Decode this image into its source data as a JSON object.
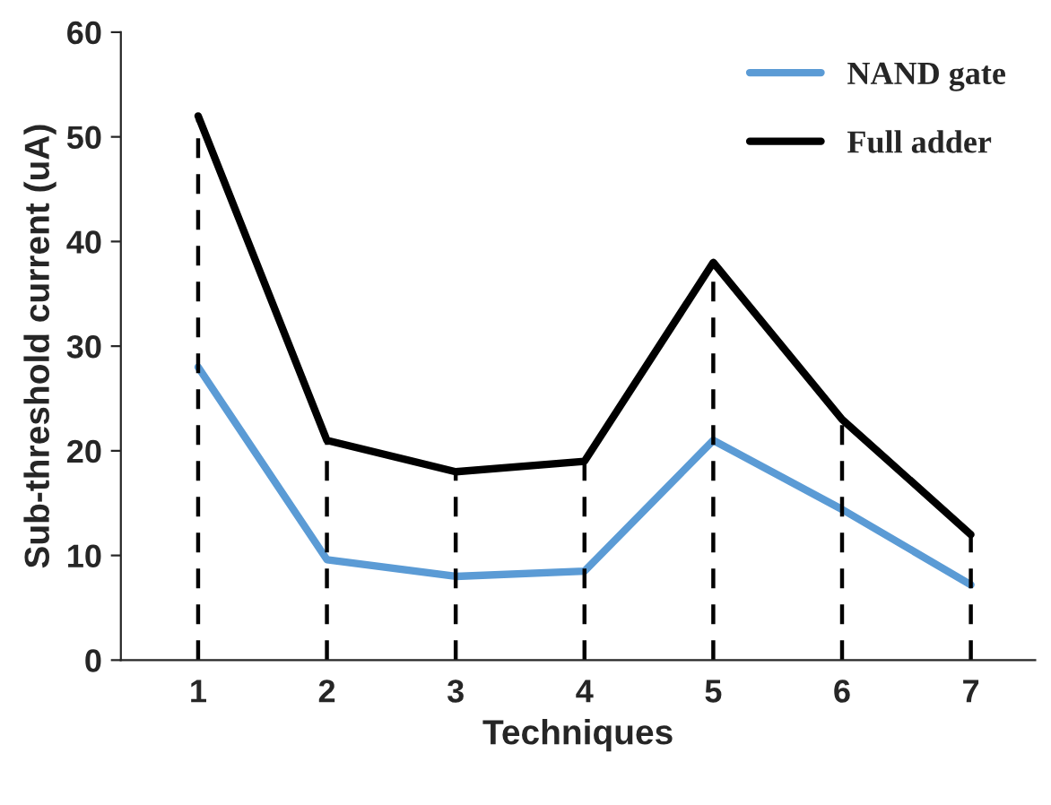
{
  "chart_data": {
    "type": "line",
    "xlabel": "Techniques",
    "ylabel": "Sub-threshold current (uA)",
    "categories": [
      "1",
      "2",
      "3",
      "4",
      "5",
      "6",
      "7"
    ],
    "series": [
      {
        "name": "NAND gate",
        "color": "#5b9bd5",
        "values": [
          28,
          9.6,
          8,
          8.5,
          21,
          14.4,
          7.2
        ]
      },
      {
        "name": "Full adder",
        "color": "#000000",
        "values": [
          52,
          21,
          18,
          19,
          38,
          23,
          12
        ]
      }
    ],
    "ref_lines": [
      {
        "axis": "x",
        "value": "1",
        "color": "#000000",
        "line_style": "dashed"
      },
      {
        "axis": "x",
        "value": "2",
        "color": "#000000",
        "line_style": "dashed"
      },
      {
        "axis": "x",
        "value": "3",
        "color": "#000000",
        "line_style": "dashed"
      },
      {
        "axis": "x",
        "value": "4",
        "color": "#000000",
        "line_style": "dashed"
      },
      {
        "axis": "x",
        "value": "5",
        "color": "#000000",
        "line_style": "dashed"
      },
      {
        "axis": "x",
        "value": "6",
        "color": "#000000",
        "line_style": "dashed"
      },
      {
        "axis": "x",
        "value": "7",
        "color": "#000000",
        "line_style": "dashed"
      }
    ],
    "ylim": [
      0,
      60
    ],
    "yticks": [
      0,
      10,
      20,
      30,
      40,
      50,
      60
    ],
    "grid": false,
    "legend": "top right",
    "marker": "none",
    "line_style": "solid"
  }
}
